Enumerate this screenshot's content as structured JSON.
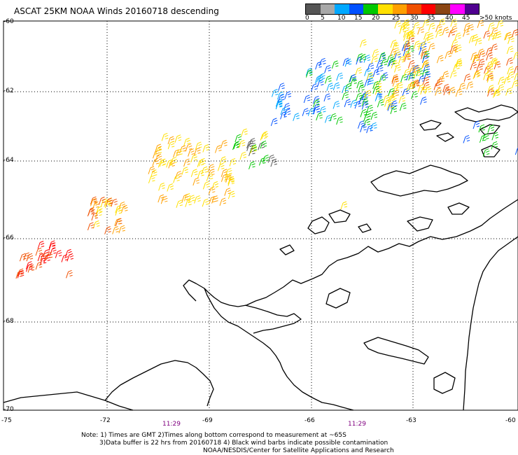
{
  "title": "ASCAT 25KM NOAA Winds 20160718 descending",
  "legend": {
    "labels": [
      "0",
      "5",
      "10",
      "15",
      "20",
      "25",
      "30",
      "35",
      "40",
      "45",
      ">50 knots"
    ],
    "colors": [
      "#555555",
      "#a8a8a8",
      "#00a8ff",
      "#0050ff",
      "#00c800",
      "#ffe000",
      "#ffa000",
      "#f05000",
      "#ff0000",
      "#8b4513",
      "#ff00ff",
      "#500090"
    ]
  },
  "axes": {
    "lat_labels": [
      "-60",
      "-62",
      "-64",
      "-66",
      "-68",
      "-70"
    ],
    "lon_labels": [
      "-75",
      "-72",
      "-69",
      "-66",
      "-63",
      "-60"
    ],
    "time_labels": [
      "11:29",
      "11:29"
    ]
  },
  "notes": {
    "line1": "Note: 1) Times are GMT 2)Times along bottom correspond to measurement at ~65S",
    "line2": "3)Data buffer is 22 hrs from 20160718 4) Black wind barbs indicate possible contamination",
    "line3": "NOAA/NESDIS/Center for Satellite Applications and Research"
  }
}
